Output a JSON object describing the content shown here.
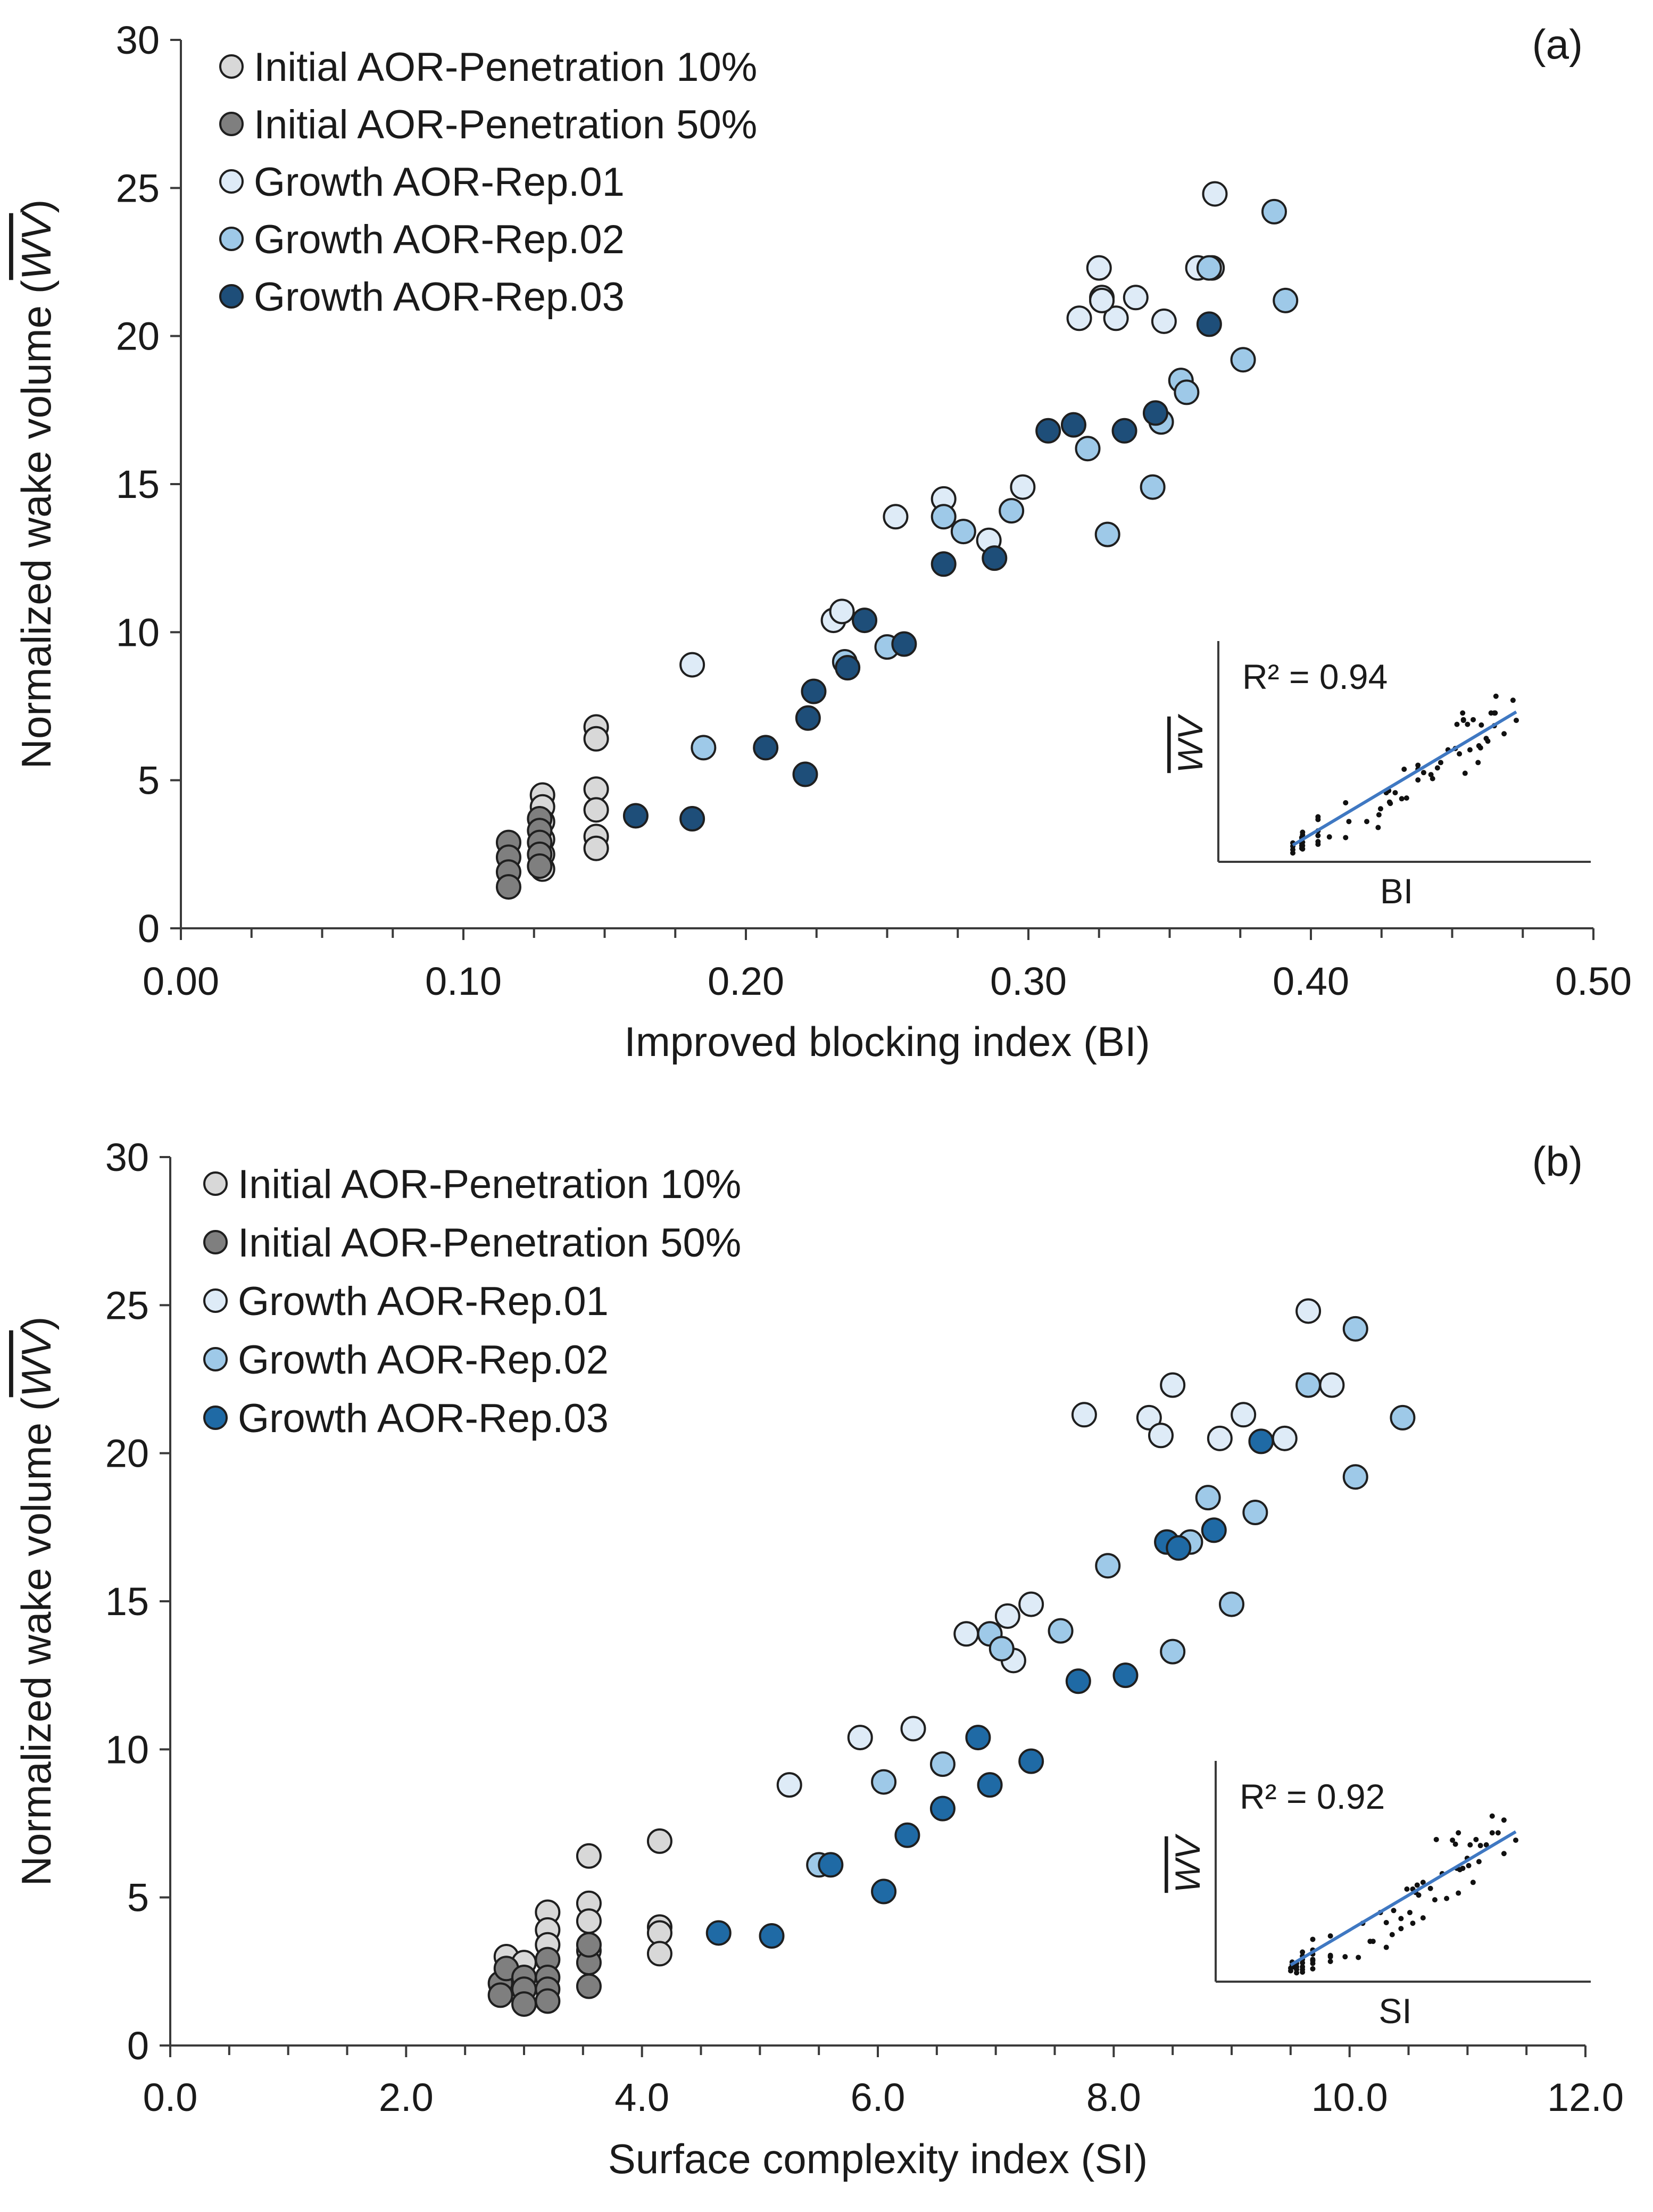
{
  "colors": {
    "initial_10": "#d8d8d8",
    "initial_50": "#7f7f7f",
    "growth_rep01": "#deebf7",
    "growth_rep02": "#9ec9e8",
    "growth_rep03": "#1f6aa5",
    "growth_rep03_dark": "#1e4e79",
    "fit_line": "#3f78c2"
  },
  "chart_data": [
    {
      "type": "scatter",
      "panel_label": "(a)",
      "xlabel": "Improved blocking index (BI)",
      "ylabel_text": "Normalized wake volume (",
      "ylabel_symbol": "WV",
      "ylabel_close": ")",
      "xlim": [
        0,
        0.5
      ],
      "ylim": [
        0,
        30
      ],
      "x_ticks": [
        "0.00",
        "0.10",
        "0.20",
        "0.30",
        "0.40",
        "0.50"
      ],
      "y_ticks": [
        "0",
        "5",
        "10",
        "15",
        "20",
        "25",
        "30"
      ],
      "legend_position": "top-left",
      "series": [
        {
          "name": "Initial AOR-Penetration 10%",
          "color_key": "initial_10",
          "points": [
            [
              0.147,
              6.8
            ],
            [
              0.147,
              6.4
            ],
            [
              0.147,
              4.7
            ],
            [
              0.147,
              4.0
            ],
            [
              0.147,
              3.1
            ],
            [
              0.147,
              2.7
            ],
            [
              0.128,
              4.5
            ],
            [
              0.128,
              4.1
            ],
            [
              0.128,
              3.6
            ],
            [
              0.128,
              3.0
            ],
            [
              0.128,
              2.5
            ],
            [
              0.128,
              2.0
            ]
          ]
        },
        {
          "name": "Initial AOR-Penetration 50%",
          "color_key": "initial_50",
          "points": [
            [
              0.116,
              2.9
            ],
            [
              0.116,
              2.4
            ],
            [
              0.116,
              1.9
            ],
            [
              0.116,
              1.4
            ],
            [
              0.127,
              3.7
            ],
            [
              0.127,
              3.3
            ],
            [
              0.127,
              2.9
            ],
            [
              0.127,
              2.5
            ],
            [
              0.127,
              2.1
            ]
          ]
        },
        {
          "name": "Growth AOR-Rep.01",
          "color_key": "growth_rep01",
          "points": [
            [
              0.181,
              8.9
            ],
            [
              0.231,
              10.4
            ],
            [
              0.234,
              10.7
            ],
            [
              0.253,
              13.9
            ],
            [
              0.27,
              14.5
            ],
            [
              0.286,
              13.1
            ],
            [
              0.298,
              14.9
            ],
            [
              0.318,
              20.6
            ],
            [
              0.325,
              22.3
            ],
            [
              0.326,
              21.3
            ],
            [
              0.331,
              20.6
            ],
            [
              0.338,
              21.3
            ],
            [
              0.348,
              20.5
            ],
            [
              0.36,
              22.3
            ],
            [
              0.366,
              24.8
            ],
            [
              0.365,
              22.3
            ],
            [
              0.326,
              21.2
            ]
          ]
        },
        {
          "name": "Growth AOR-Rep.02",
          "color_key": "growth_rep02",
          "points": [
            [
              0.185,
              6.1
            ],
            [
              0.235,
              9.0
            ],
            [
              0.25,
              9.5
            ],
            [
              0.27,
              13.9
            ],
            [
              0.277,
              13.4
            ],
            [
              0.294,
              14.1
            ],
            [
              0.321,
              16.2
            ],
            [
              0.328,
              13.3
            ],
            [
              0.344,
              14.9
            ],
            [
              0.347,
              17.1
            ],
            [
              0.354,
              18.5
            ],
            [
              0.356,
              18.1
            ],
            [
              0.376,
              19.2
            ],
            [
              0.387,
              24.2
            ],
            [
              0.391,
              21.2
            ],
            [
              0.364,
              22.3
            ]
          ]
        },
        {
          "name": "Growth AOR-Rep.03",
          "color_key": "growth_rep03_dark",
          "points": [
            [
              0.161,
              3.8
            ],
            [
              0.181,
              3.7
            ],
            [
              0.207,
              6.1
            ],
            [
              0.221,
              5.2
            ],
            [
              0.222,
              7.1
            ],
            [
              0.224,
              8.0
            ],
            [
              0.236,
              8.8
            ],
            [
              0.242,
              10.4
            ],
            [
              0.256,
              9.6
            ],
            [
              0.27,
              12.3
            ],
            [
              0.288,
              12.5
            ],
            [
              0.307,
              16.8
            ],
            [
              0.316,
              17.0
            ],
            [
              0.334,
              16.8
            ],
            [
              0.345,
              17.4
            ],
            [
              0.364,
              20.4
            ]
          ]
        }
      ],
      "inset": {
        "r2_label": "R² = 0.94",
        "xlabel": "BI",
        "ylabel": "WV",
        "fit": [
          [
            0.0,
            0.05
          ],
          [
            1.0,
            0.9
          ]
        ]
      }
    },
    {
      "type": "scatter",
      "panel_label": "(b)",
      "xlabel": "Surface complexity index (SI)",
      "ylabel_text": "Normalized wake volume (",
      "ylabel_symbol": "WV",
      "ylabel_close": ")",
      "xlim": [
        0,
        12
      ],
      "ylim": [
        0,
        30
      ],
      "x_ticks": [
        "0.0",
        "2.0",
        "4.0",
        "6.0",
        "8.0",
        "10.0",
        "12.0"
      ],
      "y_ticks": [
        "0",
        "5",
        "10",
        "15",
        "20",
        "25",
        "30"
      ],
      "legend_position": "top-left",
      "series": [
        {
          "name": "Initial AOR-Penetration 10%",
          "color_key": "initial_10",
          "points": [
            [
              4.15,
              6.9
            ],
            [
              3.55,
              6.4
            ],
            [
              3.55,
              4.8
            ],
            [
              3.55,
              4.2
            ],
            [
              3.55,
              3.2
            ],
            [
              4.15,
              4.0
            ],
            [
              4.15,
              3.8
            ],
            [
              4.15,
              3.1
            ],
            [
              3.2,
              4.5
            ],
            [
              3.2,
              3.9
            ],
            [
              3.2,
              3.4
            ],
            [
              2.85,
              3.0
            ],
            [
              3.0,
              2.8
            ],
            [
              2.9,
              2.3
            ]
          ]
        },
        {
          "name": "Initial AOR-Penetration 50%",
          "color_key": "initial_50",
          "points": [
            [
              2.8,
              2.1
            ],
            [
              2.8,
              1.7
            ],
            [
              2.85,
              2.6
            ],
            [
              3.0,
              2.3
            ],
            [
              3.0,
              1.9
            ],
            [
              3.0,
              1.4
            ],
            [
              3.2,
              2.9
            ],
            [
              3.2,
              2.3
            ],
            [
              3.2,
              1.9
            ],
            [
              3.2,
              1.5
            ],
            [
              3.55,
              2.8
            ],
            [
              3.55,
              2.0
            ],
            [
              3.55,
              3.4
            ]
          ]
        },
        {
          "name": "Growth AOR-Rep.01",
          "color_key": "growth_rep01",
          "points": [
            [
              5.25,
              8.8
            ],
            [
              5.85,
              10.4
            ],
            [
              6.3,
              10.7
            ],
            [
              6.75,
              13.9
            ],
            [
              7.1,
              14.5
            ],
            [
              7.15,
              13.0
            ],
            [
              7.3,
              14.9
            ],
            [
              7.75,
              21.3
            ],
            [
              8.3,
              21.2
            ],
            [
              8.4,
              20.6
            ],
            [
              8.5,
              22.3
            ],
            [
              8.9,
              20.5
            ],
            [
              9.1,
              21.3
            ],
            [
              9.45,
              20.5
            ],
            [
              9.65,
              24.8
            ],
            [
              9.85,
              22.3
            ]
          ]
        },
        {
          "name": "Growth AOR-Rep.02",
          "color_key": "growth_rep02",
          "points": [
            [
              5.5,
              6.1
            ],
            [
              6.05,
              8.9
            ],
            [
              6.55,
              9.5
            ],
            [
              6.95,
              13.9
            ],
            [
              7.05,
              13.4
            ],
            [
              7.55,
              14.0
            ],
            [
              7.95,
              16.2
            ],
            [
              8.5,
              13.3
            ],
            [
              8.65,
              17.0
            ],
            [
              8.8,
              18.5
            ],
            [
              9.0,
              14.9
            ],
            [
              9.2,
              18.0
            ],
            [
              9.65,
              22.3
            ],
            [
              10.05,
              24.2
            ],
            [
              10.05,
              19.2
            ],
            [
              10.45,
              21.2
            ]
          ]
        },
        {
          "name": "Growth AOR-Rep.03",
          "color_key": "growth_rep03",
          "points": [
            [
              4.65,
              3.8
            ],
            [
              5.1,
              3.7
            ],
            [
              5.6,
              6.1
            ],
            [
              6.05,
              5.2
            ],
            [
              6.25,
              7.1
            ],
            [
              6.55,
              8.0
            ],
            [
              6.85,
              10.4
            ],
            [
              6.95,
              8.8
            ],
            [
              7.3,
              9.6
            ],
            [
              7.7,
              12.3
            ],
            [
              8.1,
              12.5
            ],
            [
              8.45,
              17.0
            ],
            [
              8.55,
              16.8
            ],
            [
              8.85,
              17.4
            ],
            [
              9.25,
              20.4
            ]
          ]
        }
      ],
      "inset": {
        "r2_label": "R² = 0.92",
        "xlabel": "SI",
        "ylabel": "WV",
        "fit": [
          [
            0.0,
            0.05
          ],
          [
            1.0,
            0.9
          ]
        ]
      }
    }
  ]
}
